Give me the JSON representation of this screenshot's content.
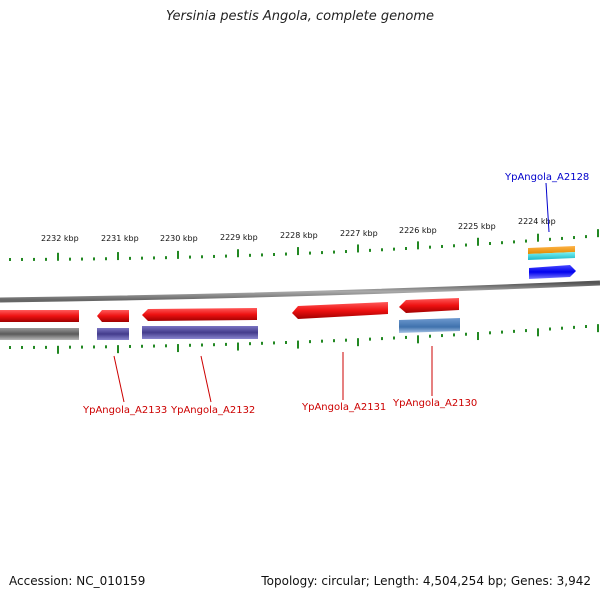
{
  "title": "Yersinia pestis Angola, complete genome",
  "footer": {
    "accession": "Accession: NC_010159",
    "stats": "Topology: circular; Length: 4,504,254 bp; Genes: 3,942"
  },
  "colors": {
    "forward_cds": "#ee1111",
    "reverse_cds": "#403a8a",
    "scale_tick": "#228822",
    "backbone": "#888888",
    "label_red": "#cc0000",
    "label_blue": "#0000cc"
  },
  "scale_labels": [
    "2232 kbp",
    "2231 kbp",
    "2230 kbp",
    "2229 kbp",
    "2228 kbp",
    "2227 kbp",
    "2226 kbp",
    "2225 kbp",
    "2224 kbp"
  ],
  "gene_labels": [
    {
      "text": "YpAngola_A2133",
      "color": "#cc0000"
    },
    {
      "text": "YpAngola_A2132",
      "color": "#cc0000"
    },
    {
      "text": "YpAngola_A2131",
      "color": "#cc0000"
    },
    {
      "text": "YpAngola_A2130",
      "color": "#cc0000"
    },
    {
      "text": "YpAngola_A2128",
      "color": "#0000cc"
    }
  ]
}
